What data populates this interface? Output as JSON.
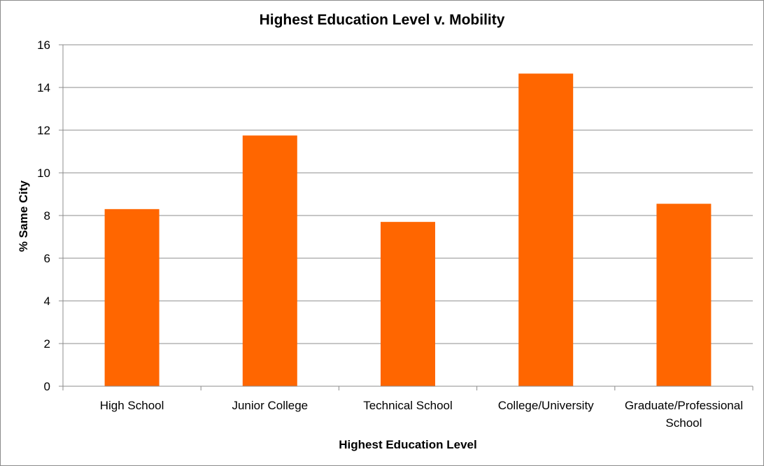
{
  "chart_data": {
    "type": "bar",
    "title": "Highest Education Level v. Mobility",
    "xlabel": "Highest Education  Level",
    "ylabel": "% Same City",
    "categories": [
      [
        "High School"
      ],
      [
        "Junior College"
      ],
      [
        "Technical School"
      ],
      [
        "College/University"
      ],
      [
        "Graduate/Professional",
        "School"
      ]
    ],
    "values": [
      8.3,
      11.75,
      7.7,
      14.65,
      8.55
    ],
    "ylim": [
      0,
      16
    ],
    "yticks": [
      0,
      2,
      4,
      6,
      8,
      10,
      12,
      14,
      16
    ],
    "grid": true,
    "legend": "none",
    "bar_color": "#ff6600"
  }
}
